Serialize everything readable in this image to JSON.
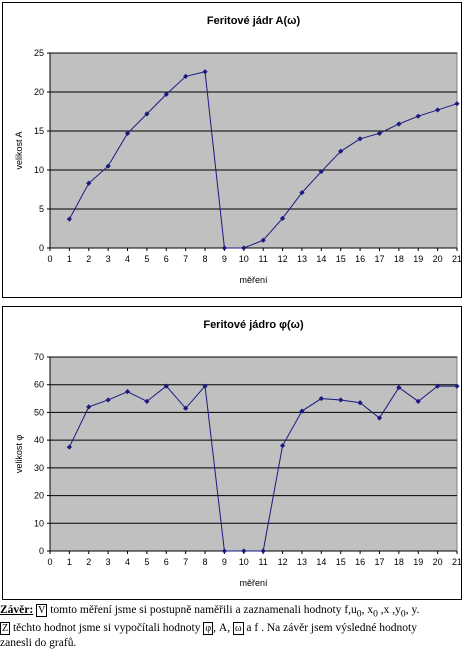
{
  "chart_data": [
    {
      "type": "line",
      "title": "Feritové jádr A(ω)",
      "xlabel": "měření",
      "ylabel": "velikost A",
      "xlim": [
        0,
        21
      ],
      "ylim": [
        0,
        25
      ],
      "yticks": [
        0,
        5,
        10,
        15,
        20,
        25
      ],
      "x": [
        1,
        2,
        3,
        4,
        5,
        6,
        7,
        8,
        9,
        10,
        11,
        12,
        13,
        14,
        15,
        16,
        17,
        18,
        19,
        20,
        21
      ],
      "values": [
        3.7,
        8.3,
        10.5,
        14.7,
        17.2,
        19.7,
        22.0,
        22.6,
        0,
        0,
        1.0,
        3.8,
        7.1,
        9.8,
        12.4,
        14.0,
        14.7,
        15.9,
        16.9,
        17.7,
        18.5
      ],
      "color": "#1a1a80",
      "plot_bg": "#c0c0c0",
      "grid": true
    },
    {
      "type": "line",
      "title": "Feritové jádro φ(ω)",
      "xlabel": "měření",
      "ylabel": "velikost φ",
      "xlim": [
        0,
        21
      ],
      "ylim": [
        0,
        70
      ],
      "yticks": [
        0,
        10,
        20,
        30,
        40,
        50,
        60,
        70
      ],
      "x": [
        1,
        2,
        3,
        4,
        5,
        6,
        7,
        8,
        9,
        10,
        11,
        12,
        13,
        14,
        15,
        16,
        17,
        18,
        19,
        20,
        21
      ],
      "values": [
        37.5,
        52.0,
        54.5,
        57.5,
        54.0,
        59.5,
        51.5,
        59.5,
        0,
        0,
        0,
        38.0,
        50.5,
        55.0,
        54.5,
        53.5,
        48.0,
        59.0,
        54.0,
        59.5,
        59.5
      ],
      "color": "#1a1a80",
      "plot_bg": "#c0c0c0",
      "grid": true
    }
  ],
  "conclusion": {
    "label": "Závěr:",
    "boxed_v": "V",
    "text1": " tomto měření jsme si postupně naměřili a zaznamenali hodnoty f,u",
    "sub0": "0",
    "text1b": ", x",
    "sub1": "0",
    "text1c": " ,x  ,y",
    "sub2": "0",
    "text1d": ",  y.",
    "boxed_z": "Z",
    "text2": " těchto hodnot jsme si vypočítali hodnoty ",
    "boxed_phi": "φ",
    "text2b": ", A, ",
    "boxed_omega": "ω",
    "text2c": " a f . Na závěr jsem výsledné hodnoty",
    "text3": "zanesli do grafů."
  }
}
